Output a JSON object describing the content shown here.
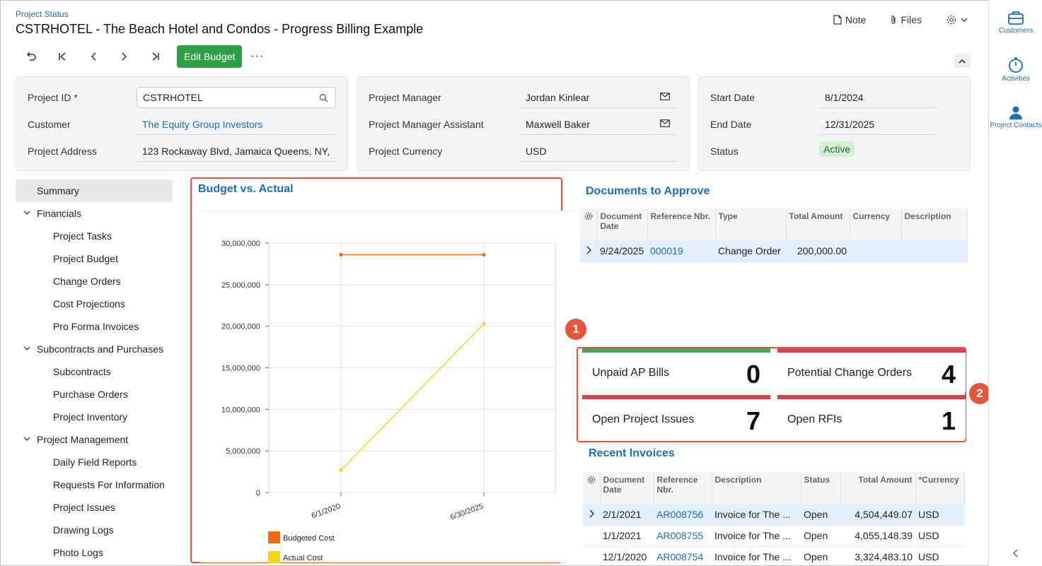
{
  "header": {
    "breadcrumb": "Project Status",
    "title": "CSTRHOTEL - The Beach Hotel and Condos - Progress Billing Example",
    "note_label": "Note",
    "files_label": "Files"
  },
  "toolbar": {
    "edit_budget_label": "Edit Budget",
    "more_label": "···"
  },
  "summary": {
    "project_id_label": "Project ID *",
    "project_id_value": "CSTRHOTEL",
    "customer_label": "Customer",
    "customer_value": "The Equity Group Investors",
    "address_label": "Project Address",
    "address_value": "123 Rockaway Blvd, Jamaica Queens, NY,",
    "pm_label": "Project Manager",
    "pm_value": "Jordan Kinlear",
    "pma_label": "Project Manager Assistant",
    "pma_value": "Maxwell Baker",
    "currency_label": "Project Currency",
    "currency_value": "USD",
    "start_label": "Start Date",
    "start_value": "8/1/2024",
    "end_label": "End Date",
    "end_value": "12/31/2025",
    "status_label": "Status",
    "status_value": "Active"
  },
  "nav": {
    "items": [
      {
        "label": "Summary",
        "kind": "sel"
      },
      {
        "label": "Financials",
        "kind": "grp"
      },
      {
        "label": "Project Tasks",
        "kind": "sub"
      },
      {
        "label": "Project Budget",
        "kind": "sub"
      },
      {
        "label": "Change Orders",
        "kind": "sub"
      },
      {
        "label": "Cost Projections",
        "kind": "sub"
      },
      {
        "label": "Pro Forma Invoices",
        "kind": "sub"
      },
      {
        "label": "Subcontracts and Purchases",
        "kind": "grp"
      },
      {
        "label": "Subcontracts",
        "kind": "sub"
      },
      {
        "label": "Purchase Orders",
        "kind": "sub"
      },
      {
        "label": "Project Inventory",
        "kind": "sub"
      },
      {
        "label": "Project Management",
        "kind": "grp"
      },
      {
        "label": "Daily Field Reports",
        "kind": "sub"
      },
      {
        "label": "Requests For Information",
        "kind": "sub"
      },
      {
        "label": "Project Issues",
        "kind": "sub"
      },
      {
        "label": "Drawing Logs",
        "kind": "sub"
      },
      {
        "label": "Photo Logs",
        "kind": "sub"
      }
    ]
  },
  "chart_title": "Budget vs. Actual",
  "chart_data": {
    "type": "line",
    "title": "Budget vs. Actual",
    "x": [
      "6/1/2020",
      "6/30/2025"
    ],
    "ylim": [
      0,
      30000000
    ],
    "yticks": [
      "0",
      "5,000,000",
      "10,000,000",
      "15,000,000",
      "20,000,000",
      "25,000,000",
      "30,000,000"
    ],
    "grid": true,
    "legend_position": "bottom",
    "series": [
      {
        "name": "Budgeted Cost",
        "color": "#f26b10",
        "values": [
          28600000,
          28600000
        ]
      },
      {
        "name": "Actual Cost",
        "color": "#ffd21f",
        "values": [
          2700000,
          20300000
        ]
      }
    ]
  },
  "docs": {
    "title": "Documents to Approve",
    "columns": [
      "Document Date",
      "Reference Nbr.",
      "Type",
      "Total Amount",
      "Currency",
      "Description"
    ],
    "rows": [
      {
        "date": "9/24/2025",
        "ref": "000019",
        "type": "Change Order",
        "amount": "200,000.00",
        "currency": "",
        "description": ""
      }
    ]
  },
  "kpis": {
    "unpaid_label": "Unpaid AP Bills",
    "unpaid_value": "0",
    "pco_label": "Potential Change Orders",
    "pco_value": "4",
    "issues_label": "Open Project Issues",
    "issues_value": "7",
    "rfi_label": "Open RFIs",
    "rfi_value": "1",
    "marker1": "1",
    "marker2": "2"
  },
  "invoices": {
    "title": "Recent Invoices",
    "columns": [
      "Document Date",
      "Reference Nbr.",
      "Description",
      "Status",
      "Total Amount",
      "Currency"
    ],
    "currency_required_mark": "*",
    "rows": [
      {
        "date": "2/1/2021",
        "ref": "AR008756",
        "description": "Invoice for The ...",
        "status": "Open",
        "amount": "4,504,449.07",
        "currency": "USD"
      },
      {
        "date": "1/1/2021",
        "ref": "AR008755",
        "description": "Invoice for The ...",
        "status": "Open",
        "amount": "4,055,148.39",
        "currency": "USD"
      },
      {
        "date": "12/1/2020",
        "ref": "AR008754",
        "description": "Invoice for The ...",
        "status": "Open",
        "amount": "3,324,483.10",
        "currency": "USD"
      }
    ]
  },
  "rail": {
    "customers_label": "Customers",
    "activities_label": "Activities",
    "contacts_label": "Project Contacts"
  }
}
